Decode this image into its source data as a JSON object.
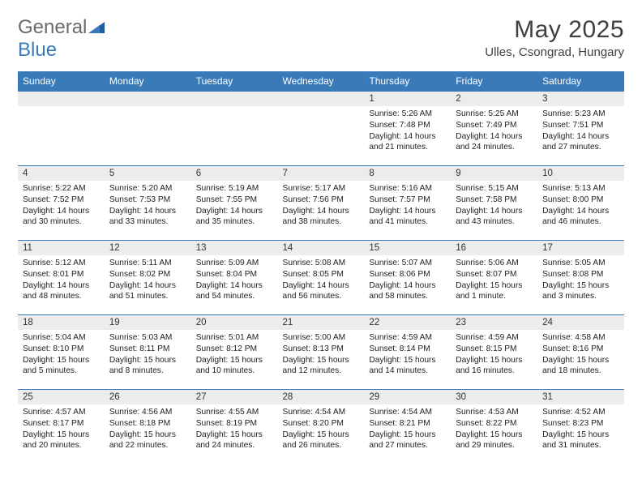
{
  "brand": {
    "part1": "General",
    "part2": "Blue"
  },
  "title": "May 2025",
  "location": "Ulles, Csongrad, Hungary",
  "colors": {
    "header_bg": "#3a7ab8",
    "header_text": "#ffffff",
    "daynum_bg": "#ececec",
    "border": "#3a7ab8",
    "text": "#222222",
    "title_text": "#404040",
    "logo_gray": "#6a6a6a",
    "logo_blue": "#3a7ab8"
  },
  "typography": {
    "title_fontsize": 30,
    "location_fontsize": 15,
    "weekday_fontsize": 12,
    "daynum_fontsize": 11.5,
    "body_fontsize": 10.2
  },
  "weekdays": [
    "Sunday",
    "Monday",
    "Tuesday",
    "Wednesday",
    "Thursday",
    "Friday",
    "Saturday"
  ],
  "weeks": [
    [
      {
        "blank": true
      },
      {
        "blank": true
      },
      {
        "blank": true
      },
      {
        "blank": true
      },
      {
        "day": "1",
        "lines": [
          "Sunrise: 5:26 AM",
          "Sunset: 7:48 PM",
          "Daylight: 14 hours and 21 minutes."
        ]
      },
      {
        "day": "2",
        "lines": [
          "Sunrise: 5:25 AM",
          "Sunset: 7:49 PM",
          "Daylight: 14 hours and 24 minutes."
        ]
      },
      {
        "day": "3",
        "lines": [
          "Sunrise: 5:23 AM",
          "Sunset: 7:51 PM",
          "Daylight: 14 hours and 27 minutes."
        ]
      }
    ],
    [
      {
        "day": "4",
        "lines": [
          "Sunrise: 5:22 AM",
          "Sunset: 7:52 PM",
          "Daylight: 14 hours and 30 minutes."
        ]
      },
      {
        "day": "5",
        "lines": [
          "Sunrise: 5:20 AM",
          "Sunset: 7:53 PM",
          "Daylight: 14 hours and 33 minutes."
        ]
      },
      {
        "day": "6",
        "lines": [
          "Sunrise: 5:19 AM",
          "Sunset: 7:55 PM",
          "Daylight: 14 hours and 35 minutes."
        ]
      },
      {
        "day": "7",
        "lines": [
          "Sunrise: 5:17 AM",
          "Sunset: 7:56 PM",
          "Daylight: 14 hours and 38 minutes."
        ]
      },
      {
        "day": "8",
        "lines": [
          "Sunrise: 5:16 AM",
          "Sunset: 7:57 PM",
          "Daylight: 14 hours and 41 minutes."
        ]
      },
      {
        "day": "9",
        "lines": [
          "Sunrise: 5:15 AM",
          "Sunset: 7:58 PM",
          "Daylight: 14 hours and 43 minutes."
        ]
      },
      {
        "day": "10",
        "lines": [
          "Sunrise: 5:13 AM",
          "Sunset: 8:00 PM",
          "Daylight: 14 hours and 46 minutes."
        ]
      }
    ],
    [
      {
        "day": "11",
        "lines": [
          "Sunrise: 5:12 AM",
          "Sunset: 8:01 PM",
          "Daylight: 14 hours and 48 minutes."
        ]
      },
      {
        "day": "12",
        "lines": [
          "Sunrise: 5:11 AM",
          "Sunset: 8:02 PM",
          "Daylight: 14 hours and 51 minutes."
        ]
      },
      {
        "day": "13",
        "lines": [
          "Sunrise: 5:09 AM",
          "Sunset: 8:04 PM",
          "Daylight: 14 hours and 54 minutes."
        ]
      },
      {
        "day": "14",
        "lines": [
          "Sunrise: 5:08 AM",
          "Sunset: 8:05 PM",
          "Daylight: 14 hours and 56 minutes."
        ]
      },
      {
        "day": "15",
        "lines": [
          "Sunrise: 5:07 AM",
          "Sunset: 8:06 PM",
          "Daylight: 14 hours and 58 minutes."
        ]
      },
      {
        "day": "16",
        "lines": [
          "Sunrise: 5:06 AM",
          "Sunset: 8:07 PM",
          "Daylight: 15 hours and 1 minute."
        ]
      },
      {
        "day": "17",
        "lines": [
          "Sunrise: 5:05 AM",
          "Sunset: 8:08 PM",
          "Daylight: 15 hours and 3 minutes."
        ]
      }
    ],
    [
      {
        "day": "18",
        "lines": [
          "Sunrise: 5:04 AM",
          "Sunset: 8:10 PM",
          "Daylight: 15 hours and 5 minutes."
        ]
      },
      {
        "day": "19",
        "lines": [
          "Sunrise: 5:03 AM",
          "Sunset: 8:11 PM",
          "Daylight: 15 hours and 8 minutes."
        ]
      },
      {
        "day": "20",
        "lines": [
          "Sunrise: 5:01 AM",
          "Sunset: 8:12 PM",
          "Daylight: 15 hours and 10 minutes."
        ]
      },
      {
        "day": "21",
        "lines": [
          "Sunrise: 5:00 AM",
          "Sunset: 8:13 PM",
          "Daylight: 15 hours and 12 minutes."
        ]
      },
      {
        "day": "22",
        "lines": [
          "Sunrise: 4:59 AM",
          "Sunset: 8:14 PM",
          "Daylight: 15 hours and 14 minutes."
        ]
      },
      {
        "day": "23",
        "lines": [
          "Sunrise: 4:59 AM",
          "Sunset: 8:15 PM",
          "Daylight: 15 hours and 16 minutes."
        ]
      },
      {
        "day": "24",
        "lines": [
          "Sunrise: 4:58 AM",
          "Sunset: 8:16 PM",
          "Daylight: 15 hours and 18 minutes."
        ]
      }
    ],
    [
      {
        "day": "25",
        "lines": [
          "Sunrise: 4:57 AM",
          "Sunset: 8:17 PM",
          "Daylight: 15 hours and 20 minutes."
        ]
      },
      {
        "day": "26",
        "lines": [
          "Sunrise: 4:56 AM",
          "Sunset: 8:18 PM",
          "Daylight: 15 hours and 22 minutes."
        ]
      },
      {
        "day": "27",
        "lines": [
          "Sunrise: 4:55 AM",
          "Sunset: 8:19 PM",
          "Daylight: 15 hours and 24 minutes."
        ]
      },
      {
        "day": "28",
        "lines": [
          "Sunrise: 4:54 AM",
          "Sunset: 8:20 PM",
          "Daylight: 15 hours and 26 minutes."
        ]
      },
      {
        "day": "29",
        "lines": [
          "Sunrise: 4:54 AM",
          "Sunset: 8:21 PM",
          "Daylight: 15 hours and 27 minutes."
        ]
      },
      {
        "day": "30",
        "lines": [
          "Sunrise: 4:53 AM",
          "Sunset: 8:22 PM",
          "Daylight: 15 hours and 29 minutes."
        ]
      },
      {
        "day": "31",
        "lines": [
          "Sunrise: 4:52 AM",
          "Sunset: 8:23 PM",
          "Daylight: 15 hours and 31 minutes."
        ]
      }
    ]
  ]
}
